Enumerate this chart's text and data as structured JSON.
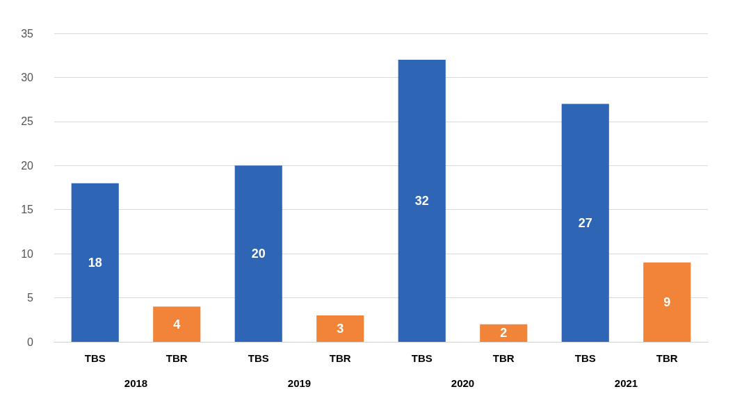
{
  "chart_data": {
    "type": "bar",
    "categories": [
      "TBS",
      "TBR",
      "TBS",
      "TBR",
      "TBS",
      "TBR",
      "TBS",
      "TBR"
    ],
    "values": [
      18,
      4,
      20,
      3,
      32,
      2,
      27,
      9
    ],
    "colors": [
      "#2e66b5",
      "#f2843a",
      "#2e66b5",
      "#f2843a",
      "#2e66b5",
      "#f2843a",
      "#2e66b5",
      "#f2843a"
    ],
    "annotations": [
      "2018",
      "2019",
      "2020",
      "2021"
    ],
    "ylim": [
      0,
      35
    ],
    "yticks": [
      0,
      5,
      10,
      15,
      20,
      25,
      30,
      35
    ],
    "grid": "y",
    "data_labels": true
  }
}
